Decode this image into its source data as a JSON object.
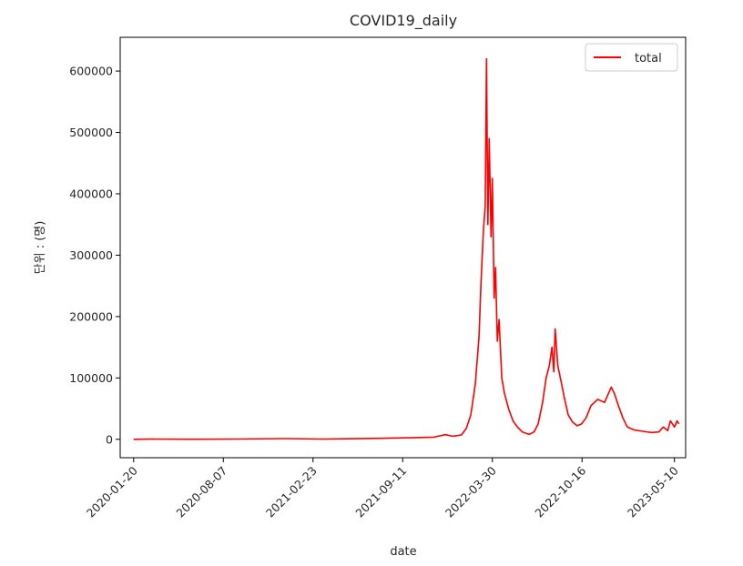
{
  "chart_data": {
    "type": "line",
    "title": "COVID19_daily",
    "xlabel": "date",
    "ylabel": "단위 : (명)",
    "xlim": [
      "2019-12-21",
      "2023-06-04"
    ],
    "ylim": [
      -30000,
      655000
    ],
    "x_ticks": [
      "2020-01-20",
      "2020-08-07",
      "2021-02-23",
      "2021-09-11",
      "2022-03-30",
      "2022-10-16",
      "2023-05-10"
    ],
    "y_ticks": [
      0,
      100000,
      200000,
      300000,
      400000,
      500000,
      600000
    ],
    "y_tick_labels": [
      "0",
      "100000",
      "200000",
      "300000",
      "400000",
      "500000",
      "600000"
    ],
    "grid": false,
    "legend_position": "top-right",
    "series": [
      {
        "name": "total",
        "color": "#ff0000",
        "points": [
          [
            "2020-01-20",
            0
          ],
          [
            "2020-03-01",
            600
          ],
          [
            "2020-03-10",
            400
          ],
          [
            "2020-06-01",
            50
          ],
          [
            "2020-08-25",
            400
          ],
          [
            "2020-12-25",
            1100
          ],
          [
            "2021-03-15",
            450
          ],
          [
            "2021-07-25",
            1600
          ],
          [
            "2021-09-25",
            2500
          ],
          [
            "2021-11-20",
            3500
          ],
          [
            "2021-12-15",
            7500
          ],
          [
            "2022-01-01",
            5000
          ],
          [
            "2022-01-20",
            7000
          ],
          [
            "2022-01-31",
            18000
          ],
          [
            "2022-02-10",
            40000
          ],
          [
            "2022-02-20",
            90000
          ],
          [
            "2022-02-28",
            165000
          ],
          [
            "2022-03-05",
            260000
          ],
          [
            "2022-03-10",
            340000
          ],
          [
            "2022-03-14",
            380000
          ],
          [
            "2022-03-17",
            620000
          ],
          [
            "2022-03-20",
            350000
          ],
          [
            "2022-03-23",
            490000
          ],
          [
            "2022-03-27",
            330000
          ],
          [
            "2022-03-30",
            425000
          ],
          [
            "2022-04-03",
            230000
          ],
          [
            "2022-04-06",
            280000
          ],
          [
            "2022-04-10",
            160000
          ],
          [
            "2022-04-14",
            195000
          ],
          [
            "2022-04-20",
            100000
          ],
          [
            "2022-04-26",
            75000
          ],
          [
            "2022-05-05",
            50000
          ],
          [
            "2022-05-15",
            30000
          ],
          [
            "2022-05-25",
            20000
          ],
          [
            "2022-06-05",
            12000
          ],
          [
            "2022-06-20",
            8000
          ],
          [
            "2022-07-01",
            12000
          ],
          [
            "2022-07-10",
            25000
          ],
          [
            "2022-07-20",
            60000
          ],
          [
            "2022-07-28",
            100000
          ],
          [
            "2022-08-04",
            120000
          ],
          [
            "2022-08-10",
            150000
          ],
          [
            "2022-08-14",
            110000
          ],
          [
            "2022-08-17",
            180000
          ],
          [
            "2022-08-23",
            120000
          ],
          [
            "2022-08-30",
            95000
          ],
          [
            "2022-09-06",
            70000
          ],
          [
            "2022-09-15",
            40000
          ],
          [
            "2022-09-25",
            28000
          ],
          [
            "2022-10-05",
            22000
          ],
          [
            "2022-10-15",
            25000
          ],
          [
            "2022-10-25",
            35000
          ],
          [
            "2022-11-05",
            55000
          ],
          [
            "2022-11-20",
            65000
          ],
          [
            "2022-12-05",
            60000
          ],
          [
            "2022-12-20",
            85000
          ],
          [
            "2022-12-27",
            75000
          ],
          [
            "2023-01-05",
            55000
          ],
          [
            "2023-01-15",
            35000
          ],
          [
            "2023-01-25",
            20000
          ],
          [
            "2023-02-10",
            15000
          ],
          [
            "2023-03-01",
            13000
          ],
          [
            "2023-03-20",
            11000
          ],
          [
            "2023-04-05",
            12000
          ],
          [
            "2023-04-15",
            20000
          ],
          [
            "2023-04-25",
            14000
          ],
          [
            "2023-05-01",
            30000
          ],
          [
            "2023-05-10",
            20000
          ],
          [
            "2023-05-16",
            30000
          ],
          [
            "2023-05-20",
            25000
          ]
        ]
      }
    ]
  }
}
